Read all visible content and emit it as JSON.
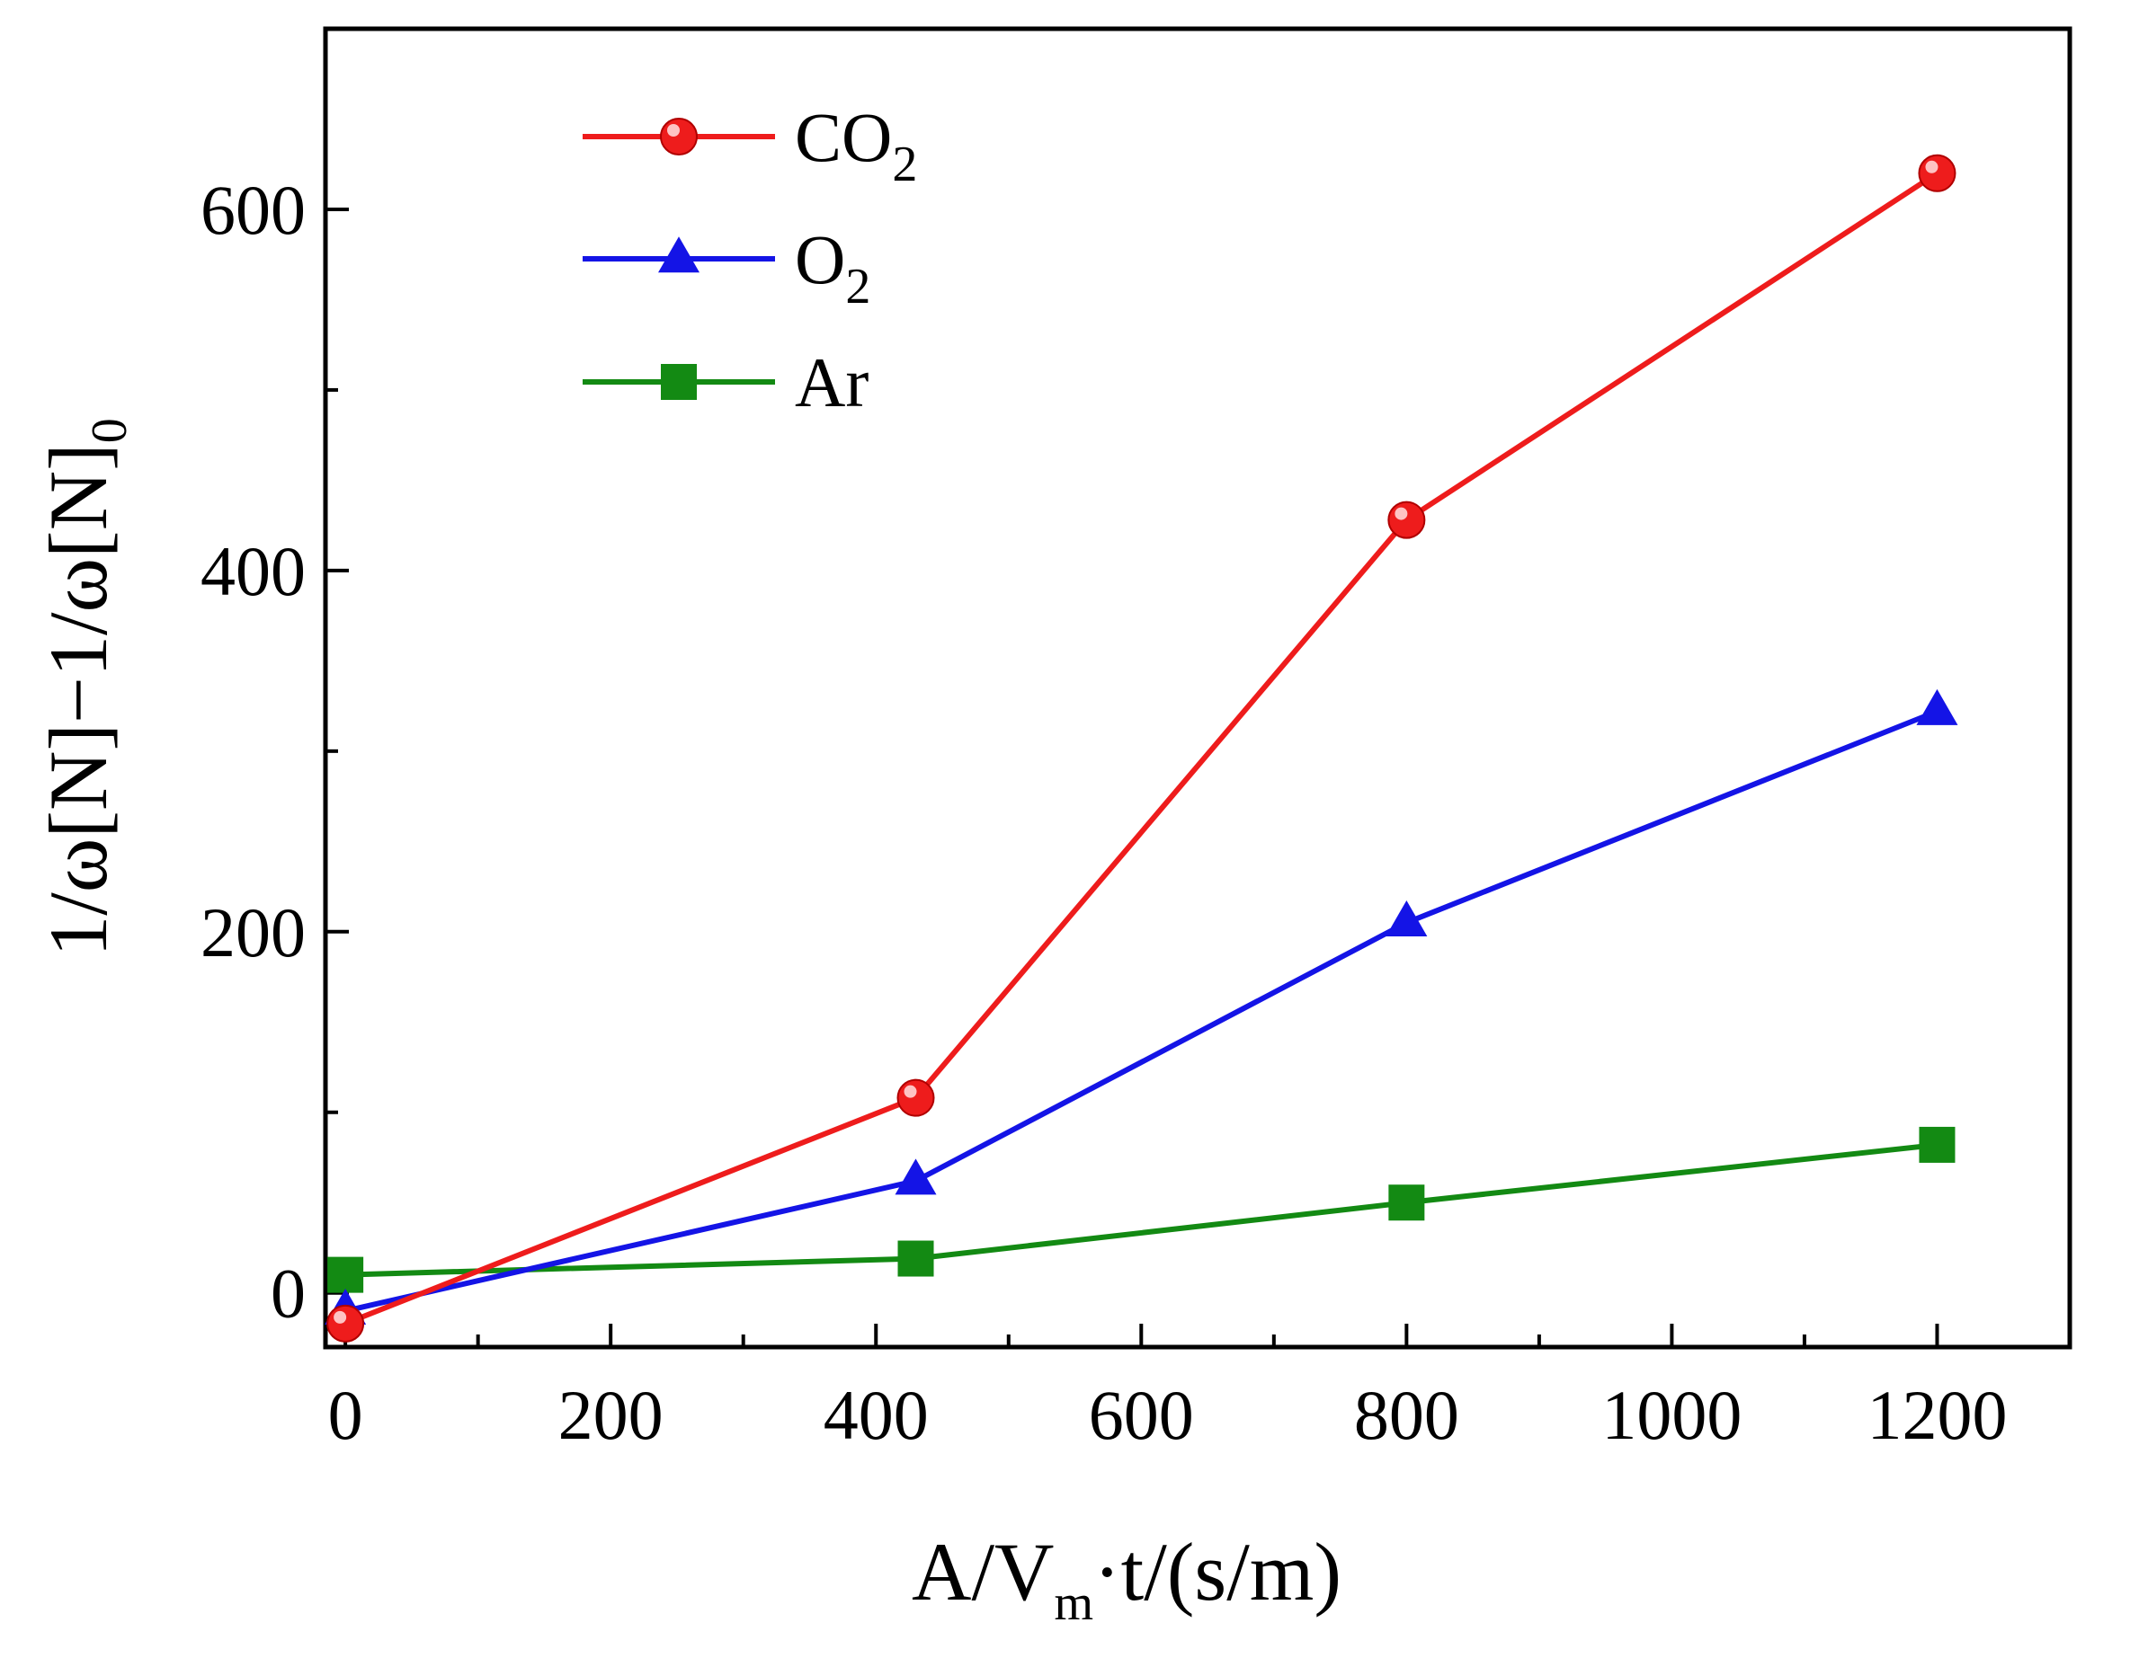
{
  "chart_data": {
    "type": "line",
    "title": "",
    "xlabel": {
      "main": "A/V",
      "sub": "m",
      "rest": "·t/(s/m)"
    },
    "ylabel": {
      "main": "1/ω[N]−1/ω[N]",
      "sub": "0"
    },
    "xlim": [
      -15,
      1300
    ],
    "ylim": [
      -30,
      700
    ],
    "xticks": [
      0,
      200,
      400,
      600,
      800,
      1000,
      1200
    ],
    "xtick_labels": [
      "0",
      "200",
      "400",
      "600",
      "800",
      "1000",
      "1200"
    ],
    "xticks_minor": [
      100,
      300,
      500,
      700,
      900,
      1100
    ],
    "yticks": [
      0,
      200,
      400,
      600
    ],
    "ytick_labels": [
      "0",
      "200",
      "400",
      "600"
    ],
    "yticks_minor": [
      100,
      300,
      500
    ],
    "grid": false,
    "legend_position": "top-left",
    "series": [
      {
        "name": "CO2",
        "label_main": "CO",
        "label_sub": "2",
        "color": "#ee1c1c",
        "marker": "circle",
        "x": [
          0,
          430,
          800,
          1200
        ],
        "y": [
          -17,
          108,
          428,
          620
        ]
      },
      {
        "name": "O2",
        "label_main": "O",
        "label_sub": "2",
        "color": "#1414e6",
        "marker": "triangle",
        "x": [
          0,
          430,
          800,
          1200
        ],
        "y": [
          -10,
          62,
          205,
          322
        ]
      },
      {
        "name": "Ar",
        "label_main": "Ar",
        "label_sub": "",
        "color": "#138a13",
        "marker": "square",
        "x": [
          0,
          430,
          800,
          1200
        ],
        "y": [
          10,
          19,
          50,
          82
        ]
      }
    ]
  }
}
